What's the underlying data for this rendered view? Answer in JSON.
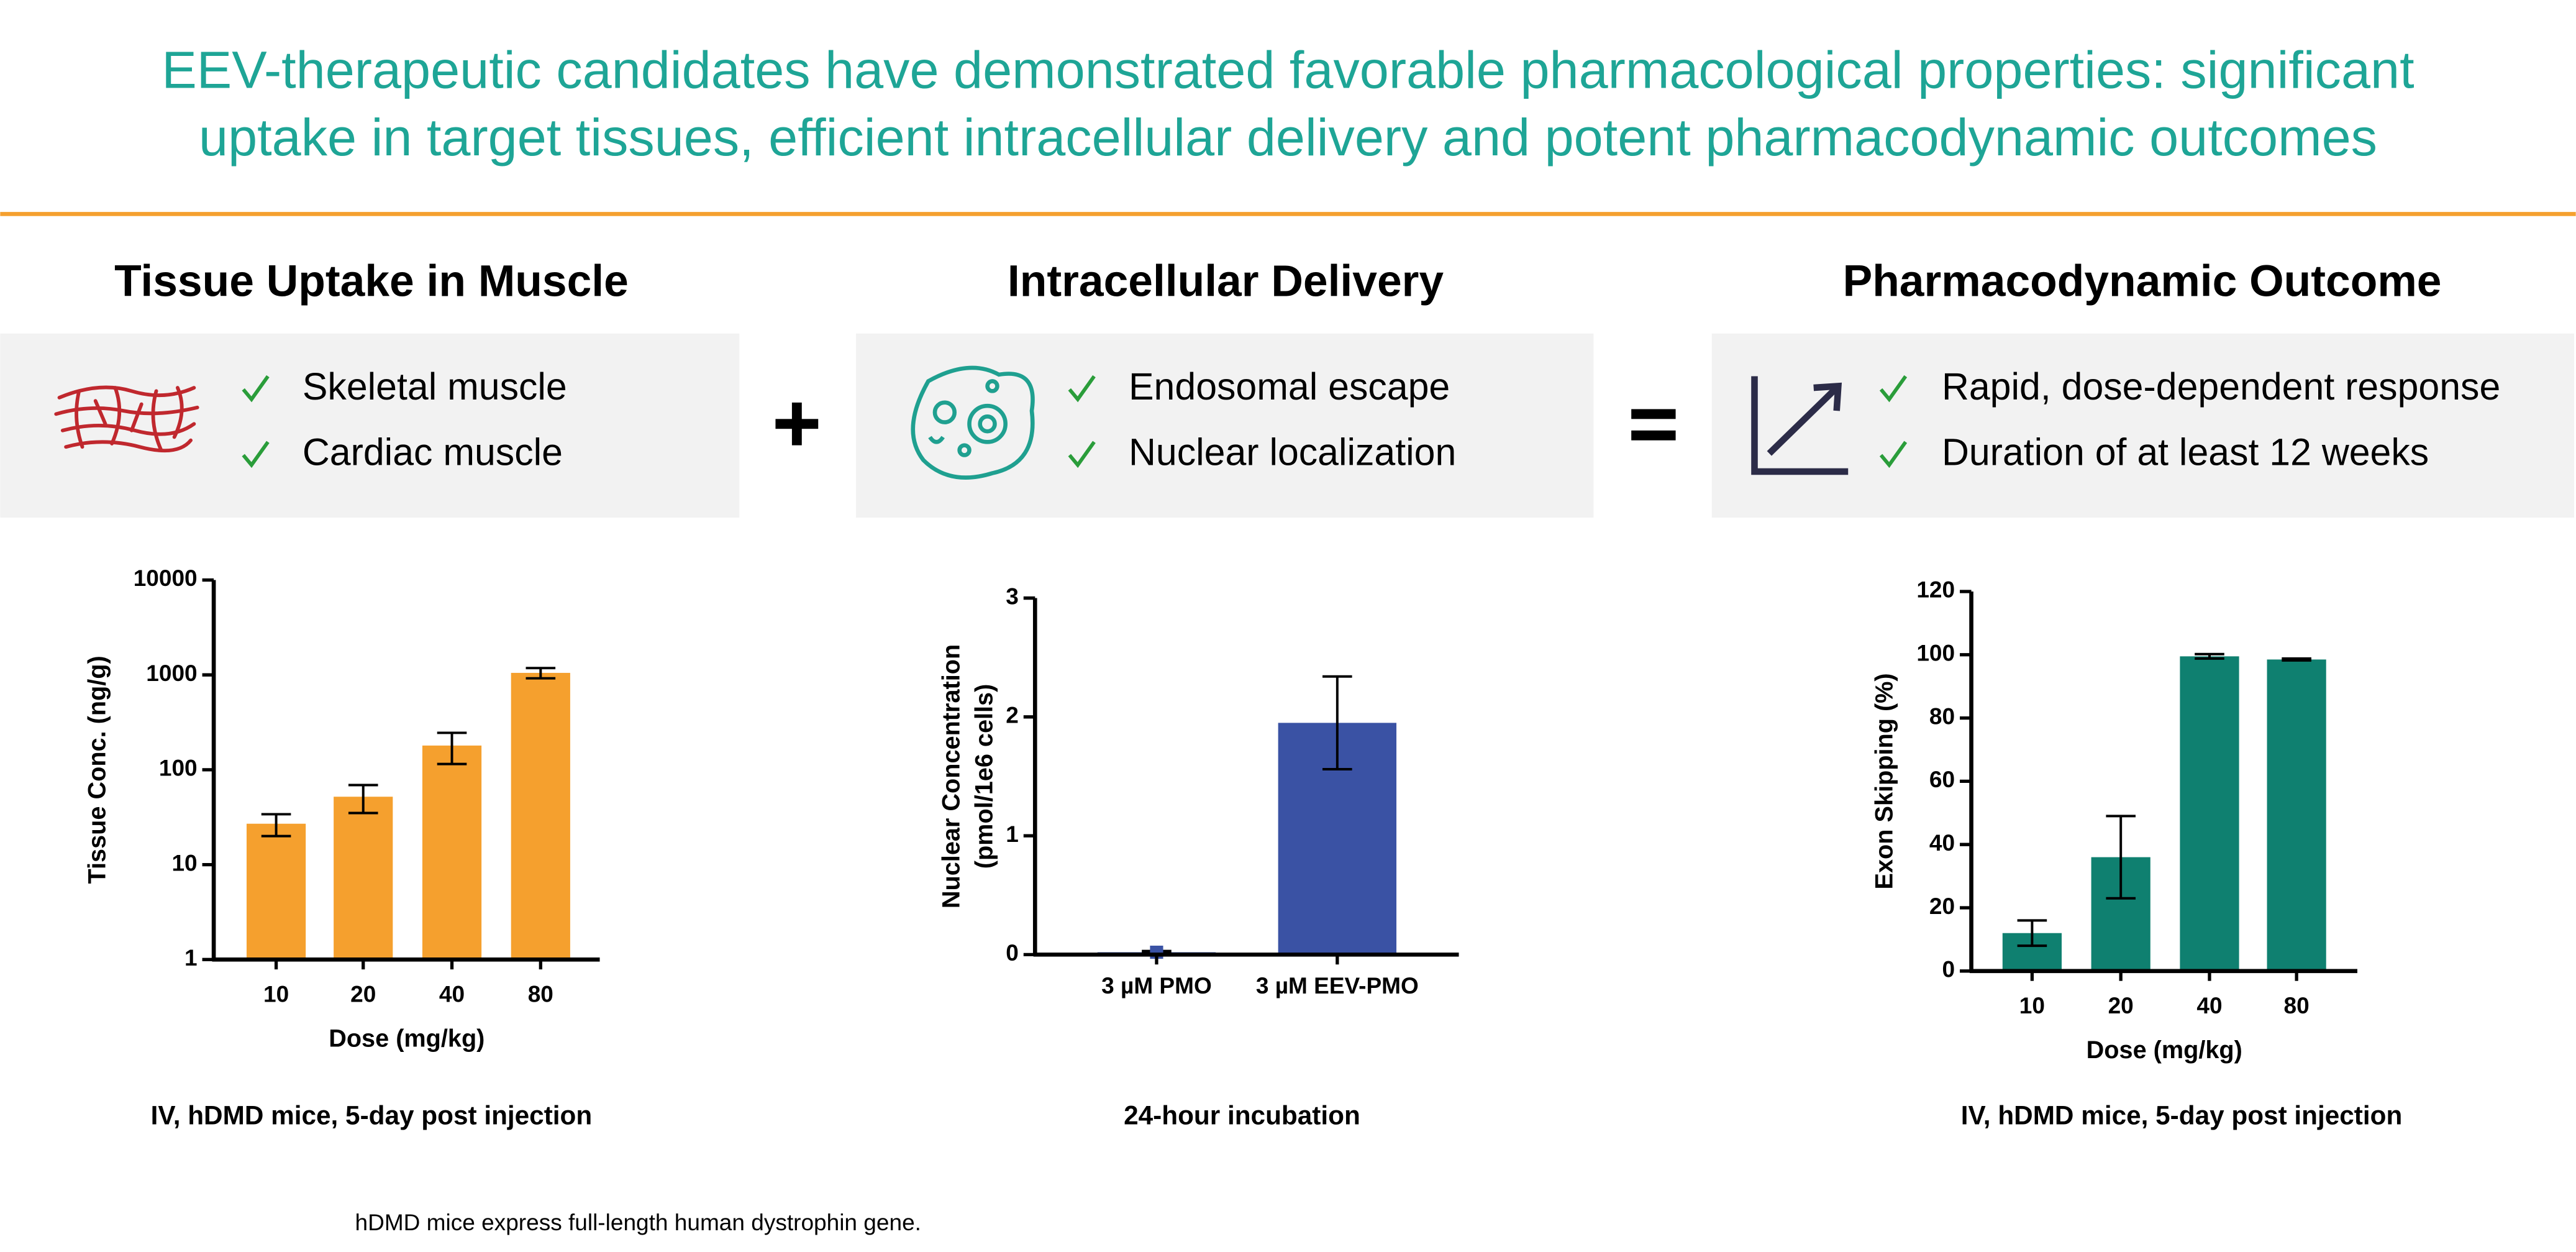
{
  "header": {
    "title": [
      "EEV-therapeutic candidates have demonstrated favorable pharmacological properties: significant",
      "uptake in target tissues, efficient intracellular delivery and potent pharmacodynamic outcomes"
    ]
  },
  "panels": [
    {
      "heading": "Tissue Uptake in Muscle",
      "bullets": [
        "Skeletal muscle",
        "Cardiac muscle"
      ]
    },
    {
      "heading": "Intracellular Delivery",
      "bullets": [
        "Endosomal escape",
        "Nuclear localization"
      ]
    },
    {
      "heading": "Pharmacodynamic Outcome",
      "bullets": [
        "Rapid, dose-dependent response",
        "Duration of at least 12 weeks"
      ]
    }
  ],
  "footnote": "hDMD mice express full-length human dystrophin gene.",
  "chart_data": [
    {
      "type": "bar",
      "categories": [
        "10",
        "20",
        "40",
        "80"
      ],
      "values": [
        27,
        52,
        180,
        1050
      ],
      "errors": [
        7,
        17,
        65,
        130
      ],
      "color": "#f5a02e",
      "log_scale": true,
      "ylim": [
        1,
        10000
      ],
      "yticks": [
        1,
        10,
        100,
        1000,
        10000
      ],
      "xlabel": "Dose (mg/kg)",
      "ylabel": [
        "Tissue Conc. (ng/g)"
      ],
      "caption": "IV, hDMD mice, 5-day post injection"
    },
    {
      "type": "bar",
      "categories": [
        "3 µM PMO",
        "3 µM EEV-PMO"
      ],
      "values": [
        0.02,
        1.95
      ],
      "errors": [
        0.01,
        0.39
      ],
      "color": "#3a52a4",
      "log_scale": false,
      "ylim": [
        0,
        3
      ],
      "yticks": [
        0,
        1,
        2,
        3
      ],
      "ylabel": [
        "Nuclear Concentration",
        "(pmol/1e6 cells)"
      ],
      "caption": "24-hour incubation"
    },
    {
      "type": "bar",
      "categories": [
        "10",
        "20",
        "40",
        "80"
      ],
      "values": [
        12,
        36,
        99.5,
        98.5
      ],
      "errors": [
        4,
        13,
        0.7,
        0.3
      ],
      "color": "#0f8070",
      "log_scale": false,
      "ylim": [
        0,
        120
      ],
      "yticks": [
        0,
        20,
        40,
        60,
        80,
        100,
        120
      ],
      "xlabel": "Dose (mg/kg)",
      "ylabel": [
        "Exon Skipping (%)"
      ],
      "caption": "IV, hDMD mice, 5-day post injection"
    }
  ]
}
